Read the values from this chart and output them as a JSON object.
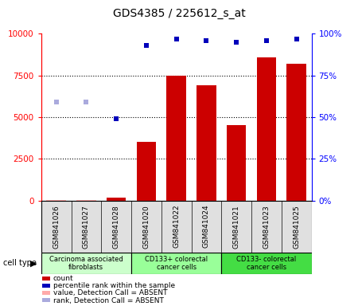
{
  "title": "GDS4385 / 225612_s_at",
  "samples": [
    "GSM841026",
    "GSM841027",
    "GSM841028",
    "GSM841020",
    "GSM841022",
    "GSM841024",
    "GSM841021",
    "GSM841023",
    "GSM841025"
  ],
  "count_values": [
    30,
    30,
    180,
    3500,
    7500,
    6900,
    4500,
    8600,
    8200
  ],
  "count_absent": [
    true,
    true,
    false,
    false,
    false,
    false,
    false,
    false,
    false
  ],
  "rank_values": [
    59,
    59,
    49,
    93,
    97,
    96,
    95,
    96,
    97
  ],
  "rank_absent": [
    true,
    true,
    false,
    false,
    false,
    false,
    false,
    false,
    false
  ],
  "ylim_left": [
    0,
    10000
  ],
  "ylim_right": [
    0,
    100
  ],
  "yticks_left": [
    0,
    2500,
    5000,
    7500,
    10000
  ],
  "yticks_right": [
    0,
    25,
    50,
    75,
    100
  ],
  "cell_groups": [
    {
      "label": "Carcinoma associated\nfibroblasts",
      "start": 0,
      "end": 3,
      "color": "#ccffcc"
    },
    {
      "label": "CD133+ colorectal\ncancer cells",
      "start": 3,
      "end": 6,
      "color": "#99ff99"
    },
    {
      "label": "CD133- colorectal\ncancer cells",
      "start": 6,
      "end": 9,
      "color": "#44dd44"
    }
  ],
  "bar_color_normal": "#cc0000",
  "bar_color_absent": "#ffaaaa",
  "rank_color_normal": "#0000bb",
  "rank_color_absent": "#aaaadd",
  "legend_items": [
    {
      "color": "#cc0000",
      "label": "count"
    },
    {
      "color": "#0000bb",
      "label": "percentile rank within the sample"
    },
    {
      "color": "#ffaaaa",
      "label": "value, Detection Call = ABSENT"
    },
    {
      "color": "#aaaadd",
      "label": "rank, Detection Call = ABSENT"
    }
  ]
}
